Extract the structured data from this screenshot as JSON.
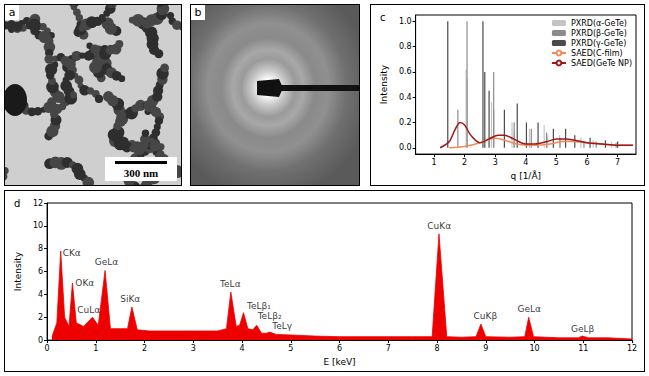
{
  "images": [
    {
      "panel": "a",
      "scale_bar": "300 nm"
    },
    {
      "panel": "b"
    }
  ],
  "chart_data": [
    {
      "type": "line",
      "title": "c",
      "x_label": "q [1/Å]",
      "y_label": "Intensity",
      "xlim": [
        0.4,
        7.6
      ],
      "xticks": [
        1,
        2,
        3,
        4,
        5,
        6,
        7
      ],
      "ylim": [
        -0.05,
        1.05
      ],
      "yticks": [
        {
          "value": 0,
          "label": "0.0"
        },
        {
          "value": 0.2,
          "label": "0.2"
        },
        {
          "value": 0.4,
          "label": "0.4"
        },
        {
          "value": 0.6,
          "label": "0.6"
        },
        {
          "value": 0.8,
          "label": "0.8"
        },
        {
          "value": 1,
          "label": "1.0"
        }
      ],
      "grid": false,
      "legend": "upper right",
      "series": [
        {
          "name": "PXRD(α-GeTe)",
          "type": "bar",
          "color": "#c4c4c4",
          "x": [
            2.05,
            2.09,
            2.88,
            2.96,
            3.55,
            3.62,
            4.12,
            4.6,
            4.7,
            5.1,
            5.8,
            6.2,
            6.8
          ],
          "values": [
            0.62,
            0.55,
            0.36,
            0.3,
            0.2,
            0.12,
            0.15,
            0.18,
            0.1,
            0.1,
            0.08,
            0.06,
            0.05
          ]
        },
        {
          "name": "PXRD(β-GeTe)",
          "type": "bar",
          "color": "#8c8c8c",
          "x": [
            1.78,
            2.08,
            2.95,
            3.62,
            4.18,
            4.68,
            5.12,
            5.9,
            6.3,
            6.95
          ],
          "values": [
            0.3,
            1.0,
            0.6,
            0.2,
            0.15,
            0.12,
            0.08,
            0.05,
            0.05,
            0.04
          ]
        },
        {
          "name": "PXRD(γ-GeTe)",
          "type": "bar",
          "color": "#4a4a4a",
          "x": [
            1.45,
            2.6,
            2.66,
            2.8,
            3.3,
            3.72,
            4.02,
            4.4,
            4.9,
            5.3,
            5.6,
            6.1,
            6.6,
            7.0
          ],
          "values": [
            1.0,
            1.0,
            0.6,
            0.45,
            0.3,
            0.35,
            0.2,
            0.2,
            0.15,
            0.15,
            0.1,
            0.08,
            0.06,
            0.05
          ]
        },
        {
          "name": "SAED(C-film)",
          "type": "line",
          "color": "#f08a5a",
          "x": [
            1.5,
            2.0,
            2.5,
            2.8,
            3.0,
            3.3,
            3.7,
            4.2,
            4.8,
            5.2,
            5.5,
            6.0,
            6.5,
            7.0,
            7.5
          ],
          "values": [
            0.0,
            0.01,
            0.04,
            0.07,
            0.075,
            0.06,
            0.03,
            0.02,
            0.03,
            0.05,
            0.05,
            0.04,
            0.03,
            0.02,
            0.02
          ]
        },
        {
          "name": "SAED(GeTe NP)",
          "type": "line",
          "color": "#a01818",
          "x": [
            1.2,
            1.5,
            1.7,
            1.85,
            2.0,
            2.2,
            2.5,
            2.8,
            3.1,
            3.3,
            3.6,
            4.0,
            4.3,
            4.7,
            5.0,
            5.3,
            5.6,
            6.0,
            6.5,
            7.0,
            7.5
          ],
          "values": [
            0.0,
            0.05,
            0.15,
            0.2,
            0.18,
            0.1,
            0.04,
            0.07,
            0.1,
            0.1,
            0.07,
            0.03,
            0.03,
            0.05,
            0.07,
            0.07,
            0.06,
            0.04,
            0.03,
            0.02,
            0.02
          ]
        }
      ]
    },
    {
      "type": "area",
      "title": "d",
      "x_label": "E [keV]",
      "y_label": "Intensity",
      "xlim": [
        0,
        12
      ],
      "xticks": [
        0,
        1,
        2,
        3,
        4,
        5,
        6,
        7,
        8,
        9,
        10,
        11,
        12
      ],
      "ylim": [
        0,
        12
      ],
      "yticks": [
        0,
        2,
        4,
        6,
        8,
        10,
        12
      ],
      "grid": false,
      "color": "#ee0000",
      "x": [
        0.1,
        0.2,
        0.28,
        0.36,
        0.45,
        0.52,
        0.6,
        0.75,
        0.93,
        1.05,
        1.19,
        1.3,
        1.5,
        1.65,
        1.74,
        1.85,
        2.1,
        2.5,
        3.0,
        3.5,
        3.68,
        3.77,
        3.88,
        3.95,
        4.03,
        4.12,
        4.22,
        4.3,
        4.4,
        4.5,
        4.57,
        4.7,
        5.0,
        5.5,
        6.0,
        6.5,
        7.0,
        7.5,
        7.9,
        8.04,
        8.2,
        8.5,
        8.8,
        8.9,
        9.0,
        9.5,
        9.8,
        9.88,
        9.98,
        10.5,
        10.9,
        10.98,
        11.1,
        11.5,
        12.0
      ],
      "values": [
        0.3,
        1.5,
        7.8,
        2.0,
        1.2,
        5.0,
        1.5,
        1.2,
        2.0,
        1.3,
        6.1,
        1.0,
        1.0,
        1.0,
        2.9,
        0.9,
        0.8,
        0.8,
        0.8,
        0.8,
        1.0,
        4.2,
        1.2,
        1.3,
        2.4,
        1.0,
        0.9,
        1.3,
        0.6,
        0.6,
        0.7,
        0.5,
        0.45,
        0.35,
        0.3,
        0.3,
        0.3,
        0.3,
        0.3,
        9.3,
        0.3,
        0.25,
        0.3,
        1.4,
        0.3,
        0.25,
        0.3,
        2.0,
        0.3,
        0.2,
        0.2,
        0.35,
        0.2,
        0.2,
        0.1
      ],
      "annotations": [
        {
          "text": "CKα",
          "x": 0.32,
          "y": 7.2
        },
        {
          "text": "OKα",
          "x": 0.58,
          "y": 4.6
        },
        {
          "text": "CuLα",
          "x": 0.62,
          "y": 2.2
        },
        {
          "text": "GeLα",
          "x": 0.98,
          "y": 6.4
        },
        {
          "text": "SiKα",
          "x": 1.5,
          "y": 3.2
        },
        {
          "text": "TeLα",
          "x": 3.55,
          "y": 4.5
        },
        {
          "text": "TeLβ₁",
          "x": 4.1,
          "y": 2.6
        },
        {
          "text": "TeLβ₂",
          "x": 4.32,
          "y": 1.75
        },
        {
          "text": "TeLγ",
          "x": 4.62,
          "y": 0.8
        },
        {
          "text": "CuKα",
          "x": 7.8,
          "y": 9.6
        },
        {
          "text": "CuKβ",
          "x": 8.75,
          "y": 1.7
        },
        {
          "text": "GeLα",
          "x": 9.65,
          "y": 2.3
        },
        {
          "text": "GeLβ",
          "x": 10.75,
          "y": 0.6
        }
      ]
    }
  ]
}
